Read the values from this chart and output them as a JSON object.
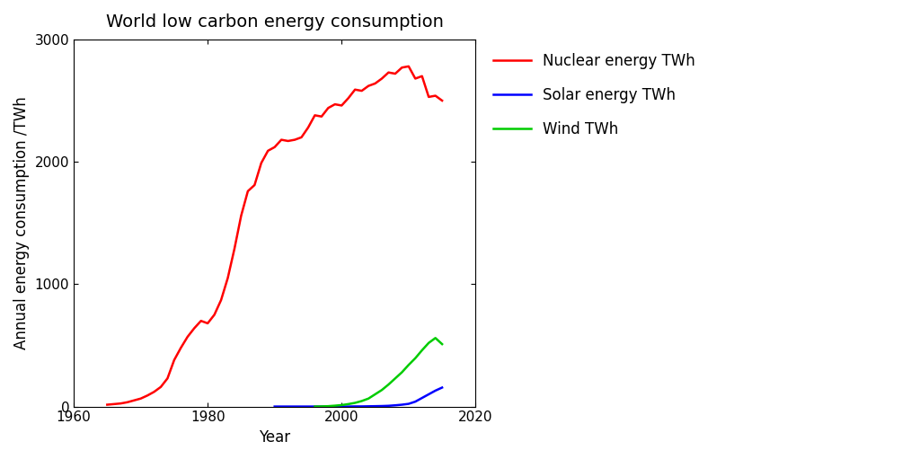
{
  "title": "World low carbon energy consumption",
  "xlabel": "Year",
  "ylabel": "Annual energy consumption /TWh",
  "xlim": [
    1960,
    2020
  ],
  "ylim": [
    0,
    3000
  ],
  "xticks": [
    1960,
    1980,
    2000,
    2020
  ],
  "yticks": [
    0,
    1000,
    2000,
    3000
  ],
  "nuclear": {
    "years": [
      1965,
      1966,
      1967,
      1968,
      1969,
      1970,
      1971,
      1972,
      1973,
      1974,
      1975,
      1976,
      1977,
      1978,
      1979,
      1980,
      1981,
      1982,
      1983,
      1984,
      1985,
      1986,
      1987,
      1988,
      1989,
      1990,
      1991,
      1992,
      1993,
      1994,
      1995,
      1996,
      1997,
      1998,
      1999,
      2000,
      2001,
      2002,
      2003,
      2004,
      2005,
      2006,
      2007,
      2008,
      2009,
      2010,
      2011,
      2012,
      2013,
      2014,
      2015
    ],
    "values": [
      15,
      20,
      25,
      35,
      50,
      65,
      90,
      120,
      160,
      230,
      380,
      480,
      570,
      640,
      700,
      680,
      750,
      870,
      1050,
      1290,
      1560,
      1760,
      1810,
      1990,
      2090,
      2120,
      2180,
      2170,
      2180,
      2200,
      2280,
      2380,
      2370,
      2440,
      2470,
      2460,
      2520,
      2590,
      2580,
      2620,
      2640,
      2680,
      2730,
      2720,
      2770,
      2780,
      2680,
      2700,
      2530,
      2540,
      2500
    ],
    "color": "#ff0000",
    "label": "Nuclear energy TWh",
    "linewidth": 1.8
  },
  "solar": {
    "years": [
      1990,
      1991,
      1992,
      1993,
      1994,
      1995,
      1996,
      1997,
      1998,
      1999,
      2000,
      2001,
      2002,
      2003,
      2004,
      2005,
      2006,
      2007,
      2008,
      2009,
      2010,
      2011,
      2012,
      2013,
      2014,
      2015
    ],
    "values": [
      0,
      0,
      0,
      0,
      0,
      0,
      0,
      0,
      0,
      0,
      0,
      0,
      1,
      1,
      2,
      3,
      4,
      6,
      10,
      15,
      22,
      40,
      70,
      100,
      130,
      155
    ],
    "color": "#0000ff",
    "label": "Solar energy TWh",
    "linewidth": 1.8
  },
  "wind": {
    "years": [
      1996,
      1997,
      1998,
      1999,
      2000,
      2001,
      2002,
      2003,
      2004,
      2005,
      2006,
      2007,
      2008,
      2009,
      2010,
      2011,
      2012,
      2013,
      2014,
      2015
    ],
    "values": [
      0,
      1,
      3,
      7,
      12,
      20,
      30,
      45,
      65,
      100,
      135,
      180,
      230,
      280,
      340,
      395,
      460,
      520,
      560,
      510
    ],
    "color": "#00cc00",
    "label": "Wind TWh",
    "linewidth": 1.8
  },
  "legend_loc": "upper right",
  "background_color": "#ffffff",
  "title_fontsize": 14,
  "label_fontsize": 12,
  "tick_fontsize": 11
}
